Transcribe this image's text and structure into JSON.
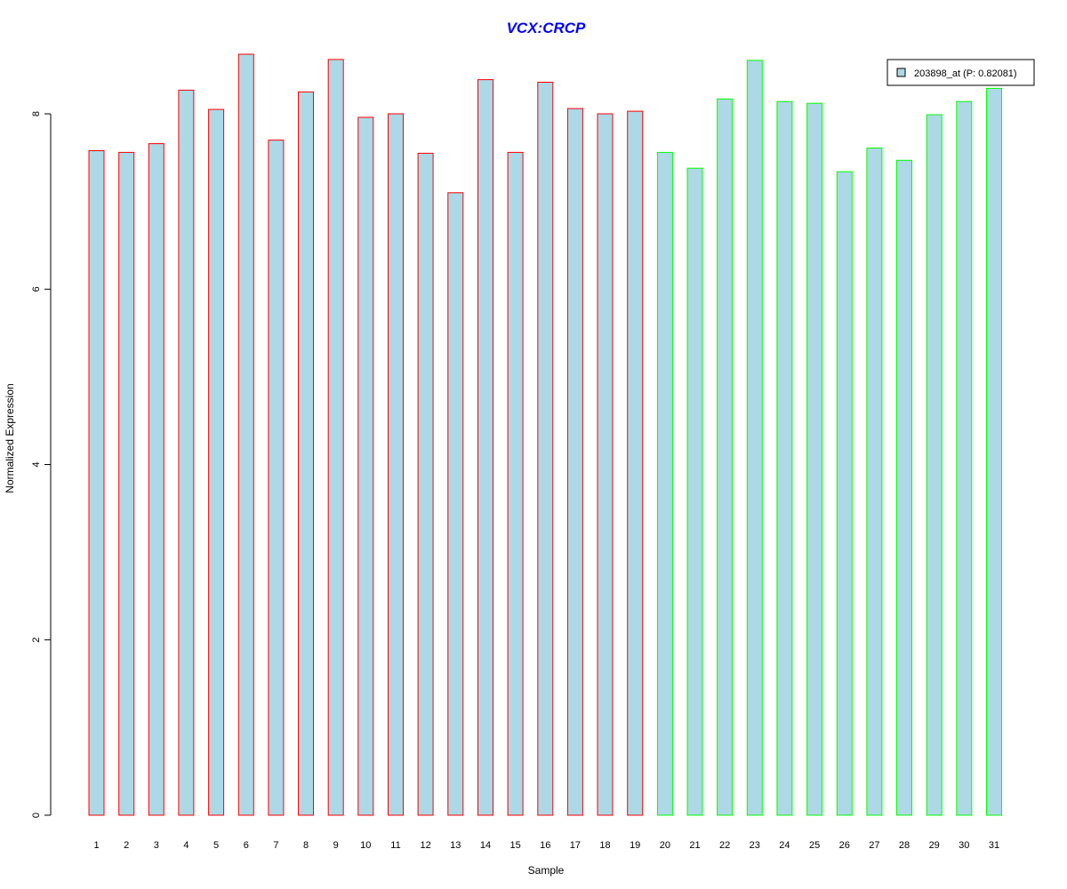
{
  "chart_data": {
    "type": "bar",
    "title": "VCX:CRCP",
    "xlabel": "Sample",
    "ylabel": "Normalized Expression",
    "ylim": [
      0,
      8.7
    ],
    "yticks": [
      "0",
      "2",
      "4",
      "6",
      "8"
    ],
    "categories": [
      "1",
      "2",
      "3",
      "4",
      "5",
      "6",
      "7",
      "8",
      "9",
      "10",
      "11",
      "12",
      "13",
      "14",
      "15",
      "16",
      "17",
      "18",
      "19",
      "20",
      "21",
      "22",
      "23",
      "24",
      "25",
      "26",
      "27",
      "28",
      "29",
      "30",
      "31"
    ],
    "series": [
      {
        "name": "203898_at (P: 0.82081)",
        "values": [
          7.58,
          7.56,
          7.66,
          8.27,
          8.05,
          8.68,
          7.7,
          8.25,
          8.62,
          7.96,
          8.0,
          7.55,
          7.1,
          8.39,
          7.56,
          8.36,
          8.06,
          8.0,
          8.03,
          7.56,
          7.38,
          8.17,
          8.61,
          8.14,
          8.12,
          7.34,
          7.61,
          7.47,
          7.99,
          8.14,
          8.29
        ]
      }
    ],
    "fill_color": "#ADD8E6",
    "group_border_colors": [
      "#FF0000",
      "#00FF00"
    ],
    "group_sizes": [
      19,
      12
    ],
    "title_color": "#0000FF",
    "legend": {
      "label": "203898_at (P: 0.82081)",
      "placement": "top-right"
    },
    "grid": false
  }
}
